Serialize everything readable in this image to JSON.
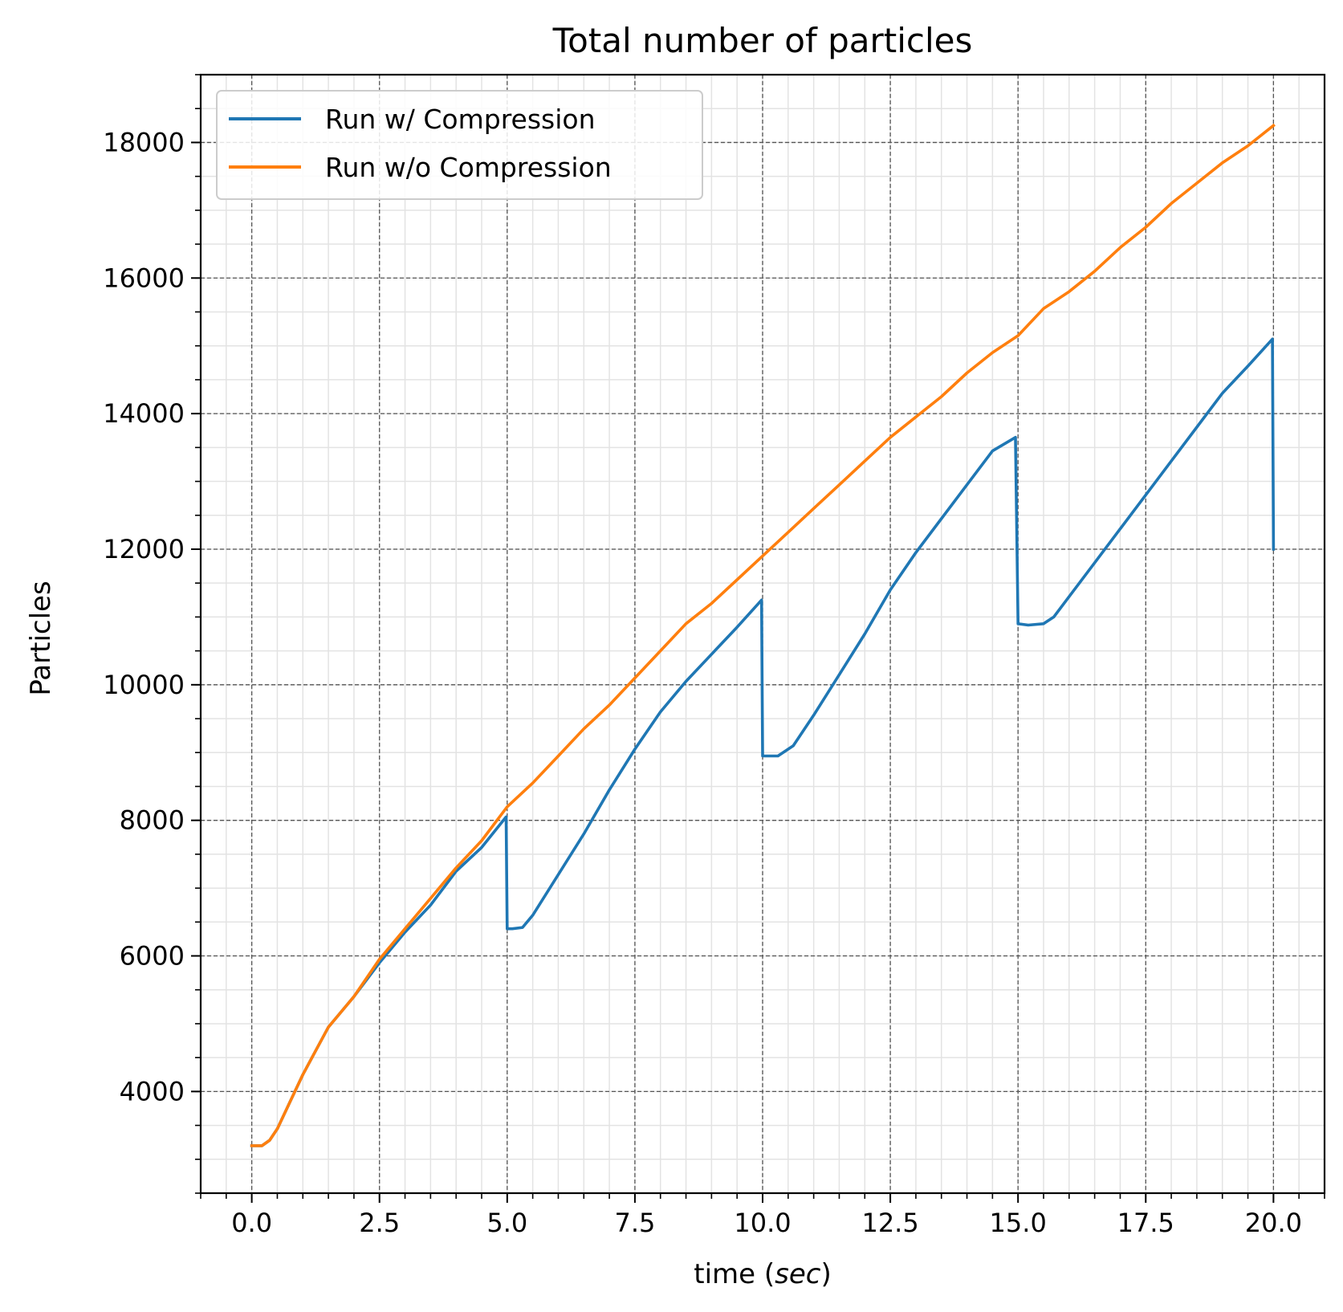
{
  "chart_data": {
    "type": "line",
    "title": "Total number of particles",
    "xlabel": "time (",
    "xlabel_italic": "sec",
    "xlabel_suffix": ")",
    "ylabel": "Particles",
    "xlim": [
      -1.0,
      21.0
    ],
    "ylim": [
      2500,
      19000
    ],
    "x_ticks": [
      0.0,
      2.5,
      5.0,
      7.5,
      10.0,
      12.5,
      15.0,
      17.5,
      20.0
    ],
    "x_tick_labels": [
      "0.0",
      "2.5",
      "5.0",
      "7.5",
      "10.0",
      "12.5",
      "15.0",
      "17.5",
      "20.0"
    ],
    "y_ticks": [
      4000,
      6000,
      8000,
      10000,
      12000,
      14000,
      16000,
      18000
    ],
    "y_tick_labels": [
      "4000",
      "6000",
      "8000",
      "10000",
      "12000",
      "14000",
      "16000",
      "18000"
    ],
    "x_minor_step": 0.5,
    "y_minor_step": 500,
    "grid": "major dashed, minor light",
    "legend_position": "top-left",
    "series": [
      {
        "name": "Run w/ Compression",
        "color": "#1f77b4",
        "points": [
          [
            0.0,
            3200
          ],
          [
            0.2,
            3200
          ],
          [
            0.35,
            3280
          ],
          [
            0.5,
            3450
          ],
          [
            0.75,
            3850
          ],
          [
            1.0,
            4250
          ],
          [
            1.25,
            4600
          ],
          [
            1.5,
            4950
          ],
          [
            2.0,
            5400
          ],
          [
            2.5,
            5900
          ],
          [
            3.0,
            6350
          ],
          [
            3.5,
            6750
          ],
          [
            4.0,
            7250
          ],
          [
            4.5,
            7600
          ],
          [
            4.98,
            8050
          ],
          [
            5.0,
            6400
          ],
          [
            5.1,
            6400
          ],
          [
            5.3,
            6420
          ],
          [
            5.5,
            6600
          ],
          [
            6.0,
            7200
          ],
          [
            6.5,
            7800
          ],
          [
            7.0,
            8450
          ],
          [
            7.5,
            9050
          ],
          [
            8.0,
            9600
          ],
          [
            8.5,
            10050
          ],
          [
            9.0,
            10450
          ],
          [
            9.5,
            10850
          ],
          [
            9.98,
            11250
          ],
          [
            10.0,
            8950
          ],
          [
            10.1,
            8950
          ],
          [
            10.3,
            8950
          ],
          [
            10.6,
            9100
          ],
          [
            11.0,
            9550
          ],
          [
            11.5,
            10150
          ],
          [
            12.0,
            10750
          ],
          [
            12.5,
            11400
          ],
          [
            13.0,
            11950
          ],
          [
            13.5,
            12450
          ],
          [
            14.0,
            12950
          ],
          [
            14.5,
            13450
          ],
          [
            14.95,
            13650
          ],
          [
            15.0,
            10900
          ],
          [
            15.2,
            10880
          ],
          [
            15.5,
            10900
          ],
          [
            15.7,
            11000
          ],
          [
            16.0,
            11300
          ],
          [
            16.5,
            11800
          ],
          [
            17.0,
            12300
          ],
          [
            17.5,
            12800
          ],
          [
            18.0,
            13300
          ],
          [
            18.5,
            13800
          ],
          [
            19.0,
            14300
          ],
          [
            19.5,
            14700
          ],
          [
            19.98,
            15100
          ],
          [
            20.0,
            12000
          ]
        ]
      },
      {
        "name": "Run w/o Compression",
        "color": "#ff7f0e",
        "points": [
          [
            0.0,
            3200
          ],
          [
            0.2,
            3200
          ],
          [
            0.35,
            3280
          ],
          [
            0.5,
            3450
          ],
          [
            0.75,
            3850
          ],
          [
            1.0,
            4250
          ],
          [
            1.25,
            4600
          ],
          [
            1.5,
            4950
          ],
          [
            2.0,
            5400
          ],
          [
            2.5,
            5950
          ],
          [
            3.0,
            6400
          ],
          [
            3.5,
            6850
          ],
          [
            4.0,
            7300
          ],
          [
            4.5,
            7700
          ],
          [
            5.0,
            8200
          ],
          [
            5.5,
            8550
          ],
          [
            6.0,
            8950
          ],
          [
            6.5,
            9350
          ],
          [
            7.0,
            9700
          ],
          [
            7.5,
            10100
          ],
          [
            8.0,
            10500
          ],
          [
            8.5,
            10900
          ],
          [
            9.0,
            11200
          ],
          [
            9.5,
            11550
          ],
          [
            10.0,
            11900
          ],
          [
            10.5,
            12250
          ],
          [
            11.0,
            12600
          ],
          [
            11.5,
            12950
          ],
          [
            12.0,
            13300
          ],
          [
            12.5,
            13650
          ],
          [
            13.0,
            13950
          ],
          [
            13.5,
            14250
          ],
          [
            14.0,
            14600
          ],
          [
            14.5,
            14900
          ],
          [
            15.0,
            15150
          ],
          [
            15.5,
            15550
          ],
          [
            16.0,
            15800
          ],
          [
            16.5,
            16100
          ],
          [
            17.0,
            16450
          ],
          [
            17.5,
            16750
          ],
          [
            18.0,
            17100
          ],
          [
            18.5,
            17400
          ],
          [
            19.0,
            17700
          ],
          [
            19.5,
            17950
          ],
          [
            20.0,
            18250
          ]
        ]
      }
    ]
  }
}
